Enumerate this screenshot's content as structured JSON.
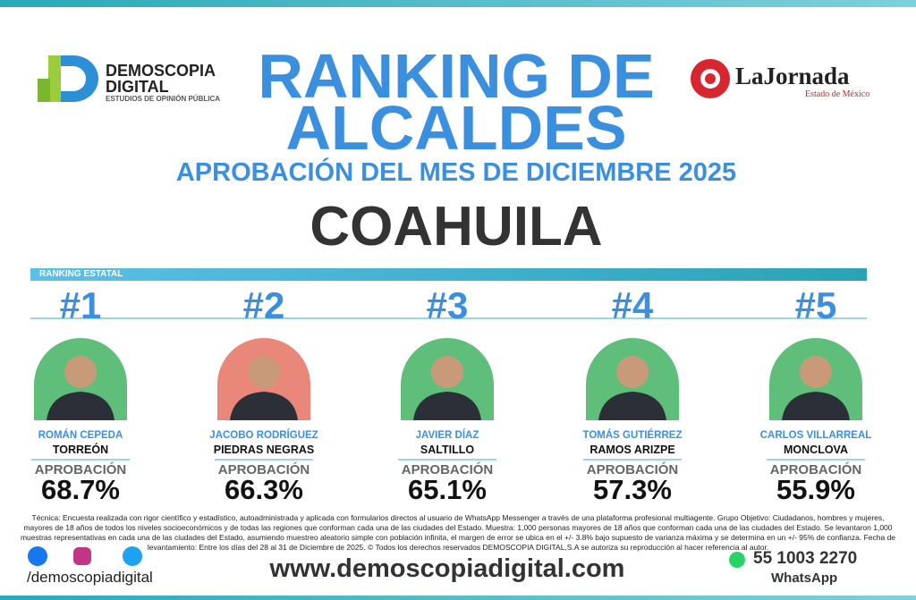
{
  "header": {
    "logo_name": "DEMOSCOPIA",
    "logo_name2": "DIGITAL",
    "logo_tagline": "ESTUDIOS DE OPINIÓN PÚBLICA",
    "title_line1": "RANKING DE",
    "title_line2": "ALCALDES",
    "subtitle": "APROBACIÓN DEL MES DE DICIEMBRE 2025",
    "state": "COAHUILA",
    "partner_name": "LaJornada",
    "partner_sub": "Estado de México"
  },
  "section_label": "RANKING ESTATAL",
  "ranking": [
    {
      "rank": "#1",
      "name": "ROMÁN CEPEDA",
      "city": "TORREÓN",
      "label": "APROBACIÓN",
      "approval": "68.7%",
      "bg": "#5fbf7a"
    },
    {
      "rank": "#2",
      "name": "JACOBO RODRÍGUEZ",
      "city": "PIEDRAS NEGRAS",
      "label": "APROBACIÓN",
      "approval": "66.3%",
      "bg": "#e9887a"
    },
    {
      "rank": "#3",
      "name": "JAVIER DÍAZ",
      "city": "SALTILLO",
      "label": "APROBACIÓN",
      "approval": "65.1%",
      "bg": "#5fbf7a"
    },
    {
      "rank": "#4",
      "name": "TOMÁS GUTIÉRREZ",
      "city": "RAMOS ARIZPE",
      "label": "APROBACIÓN",
      "approval": "57.3%",
      "bg": "#5fbf7a"
    },
    {
      "rank": "#5",
      "name": "CARLOS VILLARREAL",
      "city": "MONCLOVA",
      "label": "APROBACIÓN",
      "approval": "55.9%",
      "bg": "#5fbf7a"
    }
  ],
  "footer": {
    "methodology": "Técnica: Encuesta realizada con rigor científico y estadístico, autoadministrada y aplicada con formularios directos al usuario de WhatsApp Messenger a través de una plataforma profesional multiagente. Grupo Objetivo: Ciudadanos, hombres y mujeres, mayores de 18 años de todos los niveles socioeconómicos y de todas las regiones que conforman cada una de las ciudades del Estado. Muestra: 1,000 personas mayores de 18 años que conforman cada una de las ciudades del Estado. Se levantaron 1,000 muestras representativas en cada una de las ciudades del Estado, asumiendo muestreo aleatorio simple con población infinita, el margen de error se ubica en el +/- 3.8% bajo supuesto de varianza máxima y se determina en un +/- 95% de confianza. Fecha de levantamiento: Entre los días del 28 al 31 de Diciembre de 2025. © Todos los derechos reservados DEMOSCOPIA DIGITAL,S.A se autoriza su reproducción al hacer referencia al autor.",
    "social_handle": "/demoscopiadigital",
    "website": "www.demoscopiadigital.com",
    "phone": "55 1003 2270",
    "phone_label": "WhatsApp"
  }
}
